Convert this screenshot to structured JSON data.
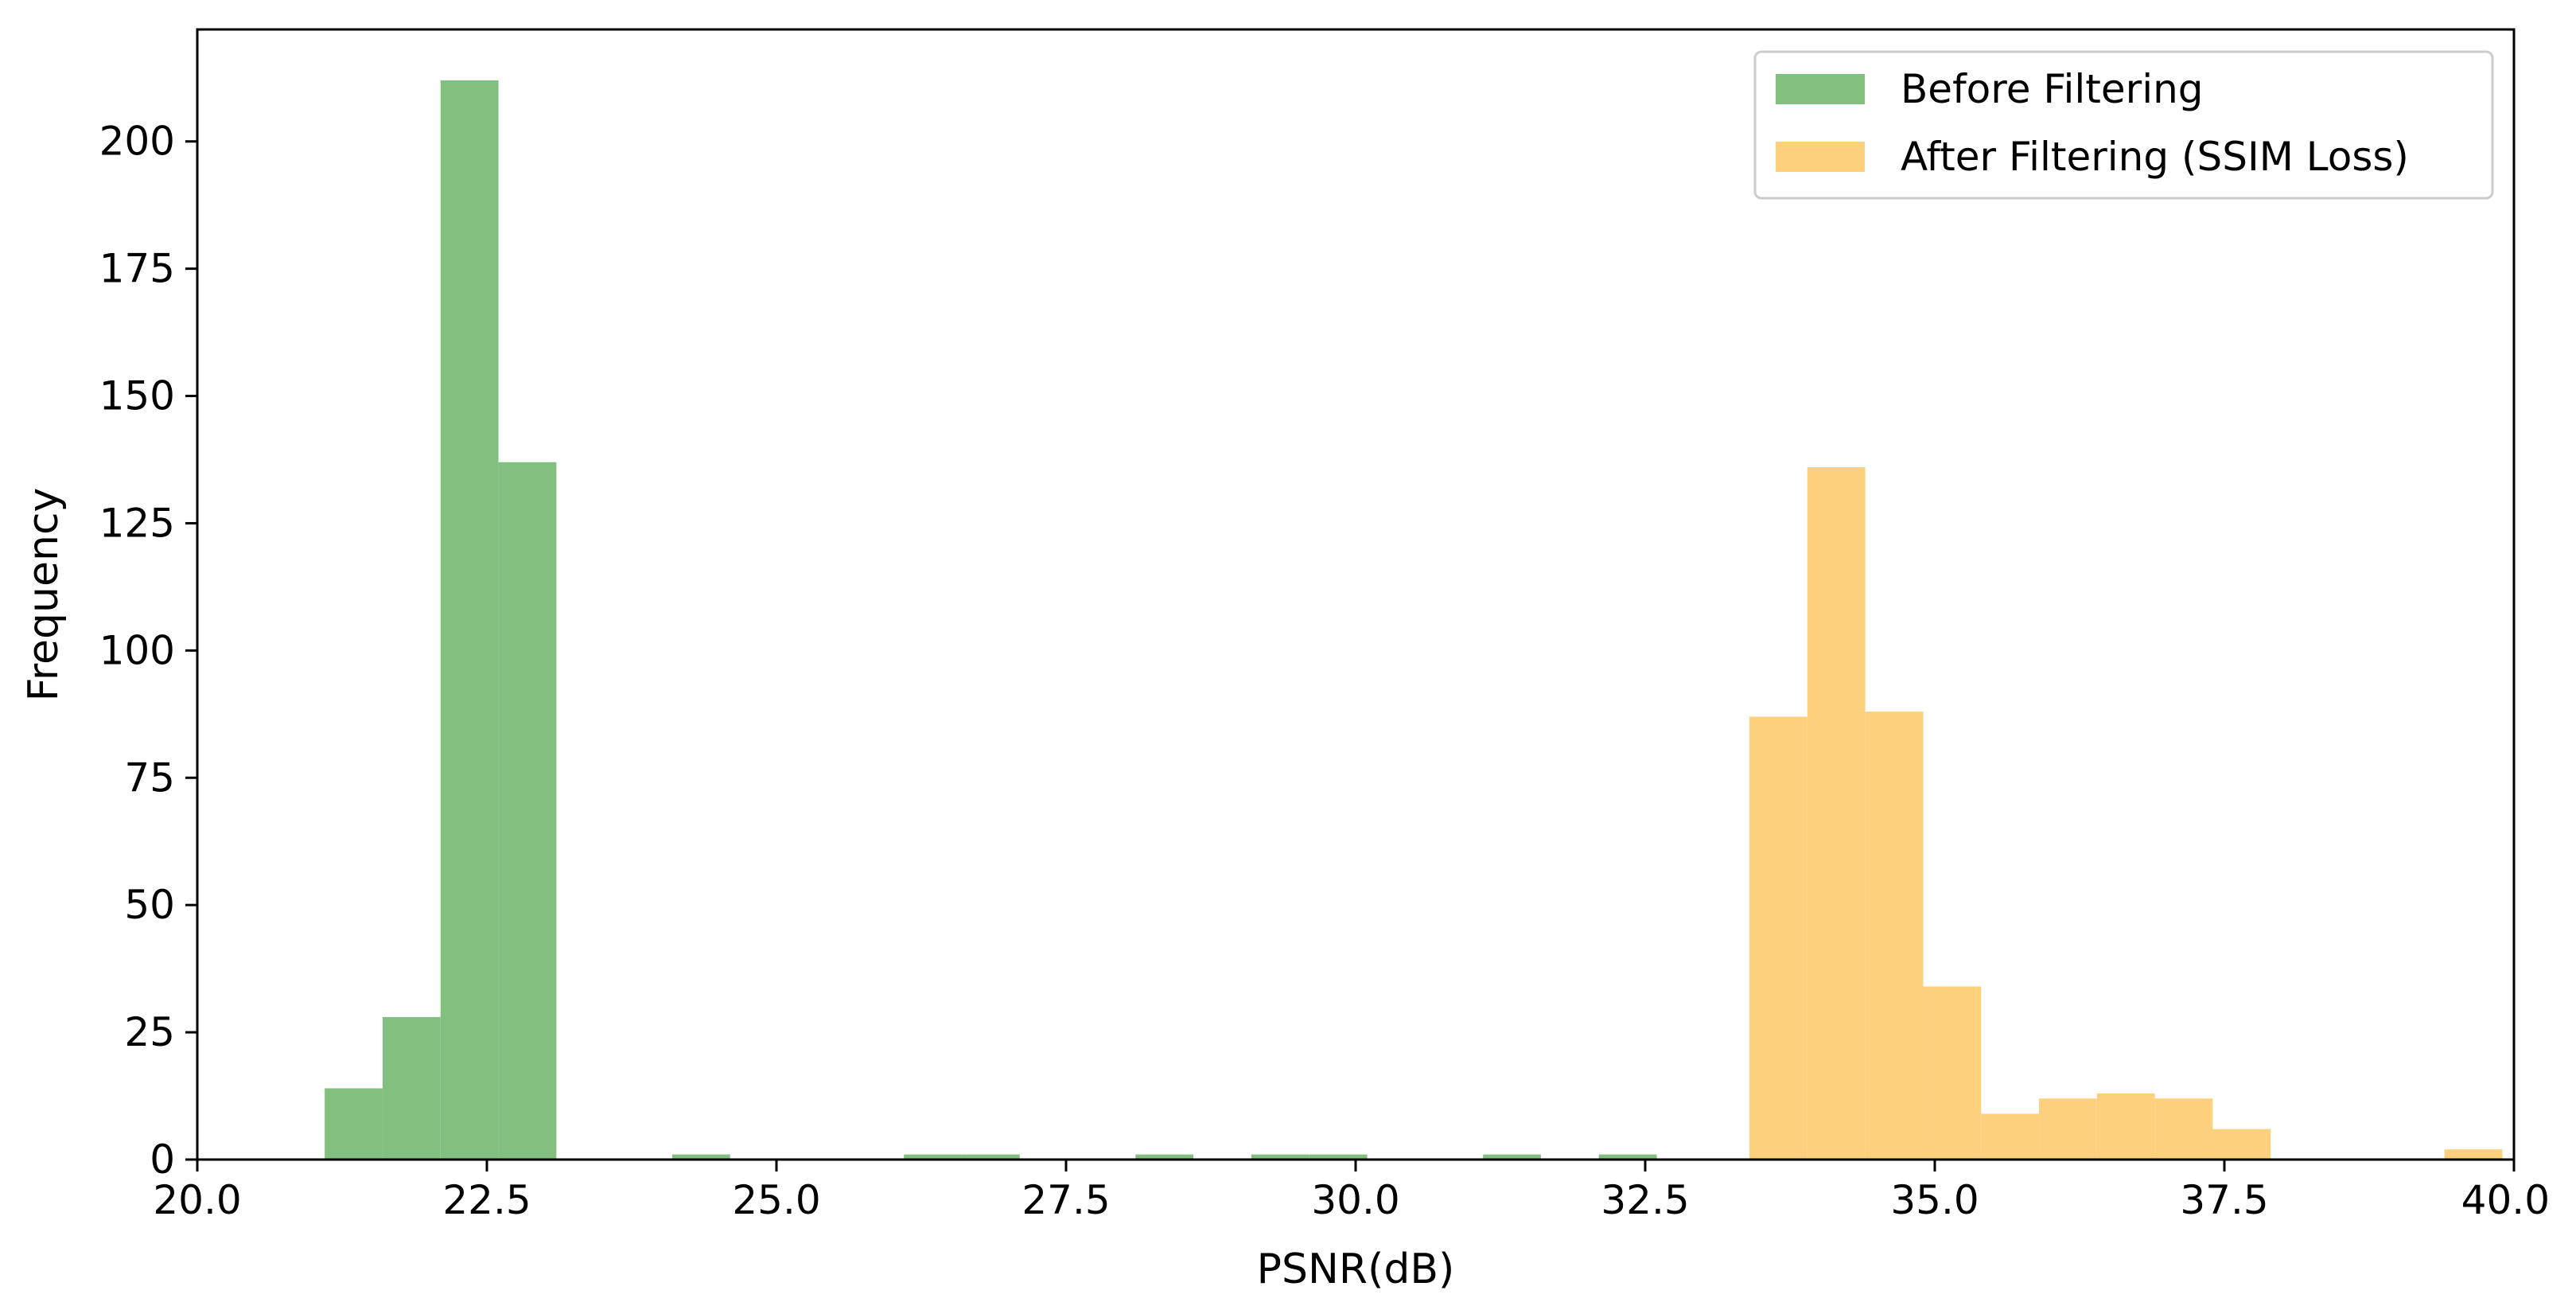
{
  "chart_data": {
    "type": "bar",
    "title": "",
    "xlabel": "PSNR(dB)",
    "ylabel": "Frequency",
    "xlim": [
      20.0,
      40.0
    ],
    "ylim": [
      0,
      222
    ],
    "bin_width": 0.5,
    "grid": false,
    "legend_position": "top-right",
    "x_ticks": [
      "20.0",
      "22.5",
      "25.0",
      "27.5",
      "30.0",
      "32.5",
      "35.0",
      "37.5",
      "40.0"
    ],
    "y_ticks": [
      "0",
      "25",
      "50",
      "75",
      "100",
      "125",
      "150",
      "175",
      "200"
    ],
    "series": [
      {
        "name": "Before Filtering",
        "color": "#81c07f",
        "bins": [
          {
            "x0": 21.1,
            "x1": 21.6,
            "count": 14
          },
          {
            "x0": 21.6,
            "x1": 22.1,
            "count": 28
          },
          {
            "x0": 22.1,
            "x1": 22.6,
            "count": 212
          },
          {
            "x0": 22.6,
            "x1": 23.1,
            "count": 137
          },
          {
            "x0": 24.1,
            "x1": 24.6,
            "count": 1
          },
          {
            "x0": 26.1,
            "x1": 26.6,
            "count": 1
          },
          {
            "x0": 26.6,
            "x1": 27.1,
            "count": 1
          },
          {
            "x0": 28.1,
            "x1": 28.6,
            "count": 1
          },
          {
            "x0": 29.1,
            "x1": 29.6,
            "count": 1
          },
          {
            "x0": 29.6,
            "x1": 30.1,
            "count": 1
          },
          {
            "x0": 31.1,
            "x1": 31.6,
            "count": 1
          },
          {
            "x0": 32.1,
            "x1": 32.6,
            "count": 1
          },
          {
            "x0": 34.9,
            "x1": 35.4,
            "count": 1
          }
        ]
      },
      {
        "name": "After Filtering (SSIM Loss)",
        "color": "#fdd07e",
        "bins": [
          {
            "x0": 33.4,
            "x1": 33.9,
            "count": 87
          },
          {
            "x0": 33.9,
            "x1": 34.4,
            "count": 136
          },
          {
            "x0": 34.4,
            "x1": 34.9,
            "count": 88
          },
          {
            "x0": 34.9,
            "x1": 35.4,
            "count": 34
          },
          {
            "x0": 35.4,
            "x1": 35.9,
            "count": 9
          },
          {
            "x0": 35.9,
            "x1": 36.4,
            "count": 12
          },
          {
            "x0": 36.4,
            "x1": 36.9,
            "count": 13
          },
          {
            "x0": 36.9,
            "x1": 37.4,
            "count": 12
          },
          {
            "x0": 37.4,
            "x1": 37.9,
            "count": 6
          },
          {
            "x0": 39.4,
            "x1": 39.9,
            "count": 2
          }
        ]
      }
    ]
  }
}
